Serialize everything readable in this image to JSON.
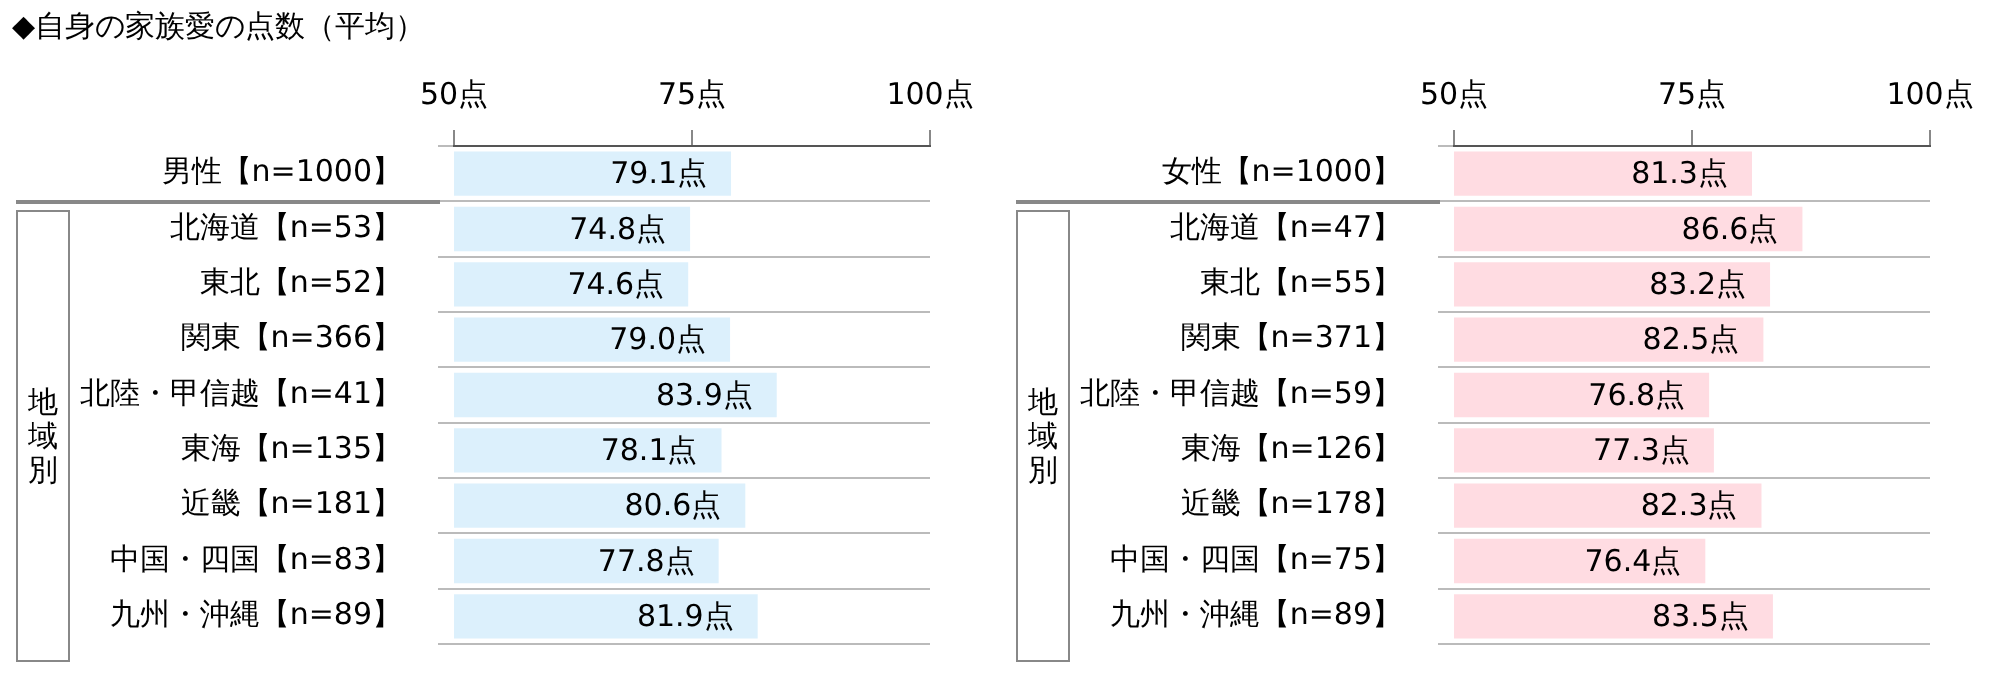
{
  "chart_data": [
    {
      "type": "bar",
      "orientation": "horizontal",
      "title": "◆自身の家族愛の点数（平均）",
      "categories": [
        "男性【n=1000】",
        "北海道【n=53】",
        "東北【n=52】",
        "関東【n=366】",
        "北陸・甲信越【n=41】",
        "東海【n=135】",
        "近畿【n=181】",
        "中国・四国【n=83】",
        "九州・沖縄【n=89】"
      ],
      "values": [
        79.1,
        74.8,
        74.6,
        79.0,
        83.9,
        78.1,
        80.6,
        77.8,
        81.9
      ],
      "value_labels": [
        "79.1点",
        "74.8点",
        "74.6点",
        "79.0点",
        "83.9点",
        "78.1点",
        "80.6点",
        "77.8点",
        "81.9点"
      ],
      "color": "#dcf0fc",
      "xlim": [
        50,
        100
      ],
      "xticks": [
        {
          "value": 50,
          "label": "50点"
        },
        {
          "value": 75,
          "label": "75点"
        },
        {
          "value": 100,
          "label": "100点"
        }
      ],
      "grid": "y",
      "legend": false,
      "annotations": [
        "地域別"
      ]
    },
    {
      "type": "bar",
      "orientation": "horizontal",
      "categories": [
        "女性【n=1000】",
        "北海道【n=47】",
        "東北【n=55】",
        "関東【n=371】",
        "北陸・甲信越【n=59】",
        "東海【n=126】",
        "近畿【n=178】",
        "中国・四国【n=75】",
        "九州・沖縄【n=89】"
      ],
      "values": [
        81.3,
        86.6,
        83.2,
        82.5,
        76.8,
        77.3,
        82.3,
        76.4,
        83.5
      ],
      "value_labels": [
        "81.3点",
        "86.6点",
        "83.2点",
        "82.5点",
        "76.8点",
        "77.3点",
        "82.3点",
        "76.4点",
        "83.5点"
      ],
      "color": "#ffdce2",
      "xlim": [
        50,
        100
      ],
      "xticks": [
        {
          "value": 50,
          "label": "50点"
        },
        {
          "value": 75,
          "label": "75点"
        },
        {
          "value": 100,
          "label": "100点"
        }
      ],
      "grid": "y",
      "legend": false,
      "annotations": [
        "地域別"
      ]
    }
  ]
}
